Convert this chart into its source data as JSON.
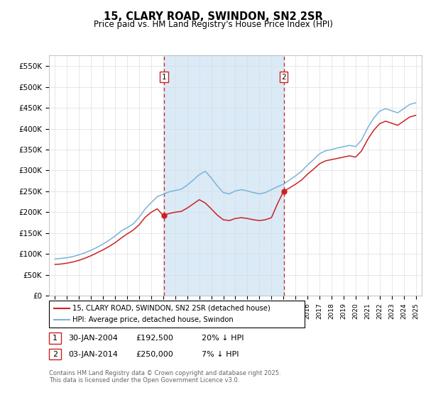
{
  "title": "15, CLARY ROAD, SWINDON, SN2 2SR",
  "subtitle": "Price paid vs. HM Land Registry's House Price Index (HPI)",
  "ylim": [
    0,
    575000
  ],
  "yticks": [
    0,
    50000,
    100000,
    150000,
    200000,
    250000,
    300000,
    350000,
    400000,
    450000,
    500000,
    550000
  ],
  "ytick_labels": [
    "£0",
    "£50K",
    "£100K",
    "£150K",
    "£200K",
    "£250K",
    "£300K",
    "£350K",
    "£400K",
    "£450K",
    "£500K",
    "£550K"
  ],
  "hpi_color": "#7ab4d8",
  "price_color": "#cc2222",
  "purchase1_date": 2004.08,
  "purchase1_price": 192500,
  "purchase1_label": "1",
  "purchase1_note": "30-JAN-2004",
  "purchase1_amount": "£192,500",
  "purchase1_pct": "20% ↓ HPI",
  "purchase2_date": 2014.02,
  "purchase2_price": 250000,
  "purchase2_label": "2",
  "purchase2_note": "03-JAN-2014",
  "purchase2_amount": "£250,000",
  "purchase2_pct": "7% ↓ HPI",
  "legend_label1": "15, CLARY ROAD, SWINDON, SN2 2SR (detached house)",
  "legend_label2": "HPI: Average price, detached house, Swindon",
  "footer": "Contains HM Land Registry data © Crown copyright and database right 2025.\nThis data is licensed under the Open Government Licence v3.0.",
  "bg_shade_color": "#daeaf6",
  "grid_color": "#dddddd",
  "years_hpi": [
    1995.0,
    1995.5,
    1996.0,
    1996.5,
    1997.0,
    1997.5,
    1998.0,
    1998.5,
    1999.0,
    1999.5,
    2000.0,
    2000.5,
    2001.0,
    2001.5,
    2002.0,
    2002.5,
    2003.0,
    2003.5,
    2004.0,
    2004.5,
    2005.0,
    2005.5,
    2006.0,
    2006.5,
    2007.0,
    2007.5,
    2008.0,
    2008.5,
    2009.0,
    2009.5,
    2010.0,
    2010.5,
    2011.0,
    2011.5,
    2012.0,
    2012.5,
    2013.0,
    2013.5,
    2014.0,
    2014.5,
    2015.0,
    2015.5,
    2016.0,
    2016.5,
    2017.0,
    2017.5,
    2018.0,
    2018.5,
    2019.0,
    2019.5,
    2020.0,
    2020.5,
    2021.0,
    2021.5,
    2022.0,
    2022.5,
    2023.0,
    2023.5,
    2024.0,
    2024.5,
    2025.0
  ],
  "hpi_values": [
    88000,
    89500,
    91000,
    94000,
    98000,
    103000,
    109000,
    116000,
    124000,
    133000,
    143000,
    155000,
    163000,
    172000,
    188000,
    208000,
    223000,
    237000,
    243000,
    249000,
    252000,
    255000,
    265000,
    277000,
    290000,
    298000,
    282000,
    263000,
    247000,
    244000,
    251000,
    254000,
    251000,
    247000,
    244000,
    247000,
    254000,
    261000,
    267000,
    277000,
    287000,
    298000,
    313000,
    326000,
    340000,
    347000,
    350000,
    354000,
    357000,
    360000,
    357000,
    373000,
    402000,
    425000,
    442000,
    448000,
    443000,
    438000,
    448000,
    458000,
    462000
  ],
  "red_values": [
    75000,
    76000,
    78000,
    81000,
    85000,
    90000,
    96000,
    103000,
    110000,
    118000,
    127000,
    138000,
    148000,
    157000,
    170000,
    188000,
    200000,
    208000,
    192500,
    197000,
    200000,
    202000,
    210000,
    220000,
    230000,
    222000,
    208000,
    193000,
    182000,
    180000,
    185000,
    187000,
    185000,
    182000,
    180000,
    182000,
    187000,
    220000,
    250000,
    258000,
    267000,
    277000,
    291000,
    303000,
    316000,
    323000,
    326000,
    329000,
    332000,
    335000,
    332000,
    347000,
    374000,
    396000,
    412000,
    418000,
    413000,
    408000,
    418000,
    428000,
    432000
  ]
}
